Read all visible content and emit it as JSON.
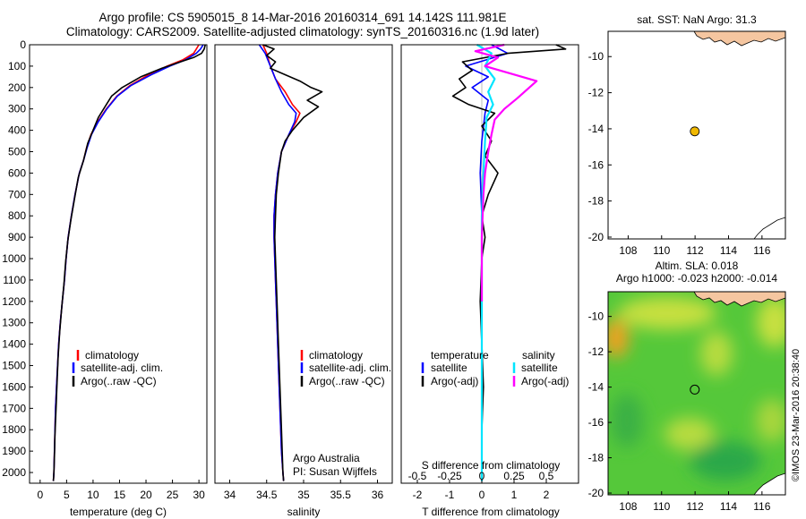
{
  "header": {
    "line1": "Argo profile: CS 5905015_8 14-Mar-2016 20160314_691 14.142S 111.981E",
    "line2": "Climatology: CARS2009. Satellite-adjusted climatology: synTS_20160316.nc (1.9d later)"
  },
  "credit": "©IMOS 23-Mar-2016 20:38:40",
  "colors": {
    "climatology": "#ff0000",
    "satellite": "#0000ff",
    "argo": "#000000",
    "salinity_satellite": "#00e5ff",
    "salinity_argo": "#ff00ff",
    "land": "#f5c6a0",
    "marker": "#f0b800"
  },
  "chart_data": [
    {
      "type": "line",
      "ylabel": "",
      "xlabel": "temperature (deg C)",
      "xlim": [
        -2,
        31.5
      ],
      "ylim": [
        2050,
        0
      ],
      "xticks": [
        0,
        5,
        10,
        15,
        20,
        25,
        30
      ],
      "yticks": [
        0,
        100,
        200,
        300,
        400,
        500,
        600,
        700,
        800,
        900,
        1000,
        1100,
        1200,
        1300,
        1400,
        1500,
        1600,
        1700,
        1800,
        1900,
        2000
      ],
      "legend": [
        "climatology",
        "satellite-adj. clim.",
        "Argo(..raw -QC)"
      ],
      "series": [
        {
          "name": "climatology",
          "color": "#ff0000",
          "x": [
            30.0,
            29.5,
            29.0,
            27.0,
            24.0,
            20.5,
            17.0,
            14.5,
            12.5,
            10.9,
            9.6,
            8.8,
            8.2,
            7.4,
            6.6,
            5.9,
            5.3,
            4.9,
            4.6,
            4.2,
            3.8,
            3.5,
            3.3,
            3.1,
            2.9,
            2.8,
            2.7,
            2.6,
            2.5
          ],
          "y": [
            0,
            20,
            40,
            70,
            100,
            140,
            190,
            240,
            300,
            360,
            420,
            480,
            540,
            600,
            700,
            800,
            900,
            1000,
            1100,
            1200,
            1300,
            1400,
            1500,
            1600,
            1700,
            1800,
            1900,
            2000,
            2040
          ]
        },
        {
          "name": "satellite-adj. clim.",
          "color": "#0000ff",
          "x": [
            30.8,
            30.3,
            29.5,
            27.5,
            24.5,
            21.0,
            17.2,
            14.6,
            12.6,
            11.0,
            9.7,
            8.9,
            8.2,
            7.4,
            6.6,
            5.9,
            5.3,
            4.9,
            4.6,
            4.2,
            3.8,
            3.5,
            3.3,
            3.1,
            2.9,
            2.8,
            2.7,
            2.6,
            2.5
          ],
          "y": [
            0,
            20,
            40,
            70,
            100,
            140,
            190,
            240,
            300,
            360,
            420,
            480,
            540,
            600,
            700,
            800,
            900,
            1000,
            1100,
            1200,
            1300,
            1400,
            1500,
            1600,
            1700,
            1800,
            1900,
            2000,
            2040
          ]
        },
        {
          "name": "Argo(..raw -QC)",
          "color": "#000000",
          "x": [
            31.2,
            31.0,
            30.5,
            29.0,
            26.5,
            23.0,
            19.0,
            15.5,
            13.5,
            12.5,
            11.0,
            10.0,
            9.0,
            8.2,
            7.2,
            6.5,
            5.8,
            5.2,
            4.8,
            4.5,
            4.1,
            3.7,
            3.4,
            3.2,
            3.0,
            2.8,
            2.7,
            2.6,
            2.5
          ],
          "y": [
            0,
            20,
            40,
            60,
            80,
            110,
            150,
            200,
            240,
            280,
            340,
            400,
            460,
            540,
            620,
            720,
            820,
            920,
            1020,
            1120,
            1220,
            1340,
            1460,
            1580,
            1700,
            1820,
            1920,
            2000,
            2040
          ]
        }
      ]
    },
    {
      "type": "line",
      "ylabel": "",
      "xlabel": "salinity",
      "xlim": [
        33.8,
        36.2
      ],
      "ylim": [
        2050,
        0
      ],
      "xticks": [
        34,
        34.5,
        35,
        35.5,
        36
      ],
      "xtick_labels": [
        "34",
        "34.5",
        "35",
        "35.5",
        "36"
      ],
      "legend": [
        "climatology",
        "satellite-adj. clim.",
        "Argo(..raw -QC)"
      ],
      "annotation": [
        "Argo Australia",
        "PI: Susan Wijffels"
      ],
      "series": [
        {
          "name": "climatology",
          "color": "#ff0000",
          "x": [
            34.45,
            34.5,
            34.55,
            34.62,
            34.75,
            34.85,
            34.95,
            34.9,
            34.8,
            34.7,
            34.65,
            34.62,
            34.6,
            34.6,
            34.61,
            34.62,
            34.64,
            34.66,
            34.68,
            34.7,
            34.72,
            34.73
          ],
          "y": [
            0,
            40,
            100,
            160,
            220,
            280,
            320,
            360,
            420,
            500,
            600,
            700,
            800,
            900,
            1000,
            1100,
            1300,
            1500,
            1700,
            1900,
            2000,
            2040
          ]
        },
        {
          "name": "satellite-adj. clim.",
          "color": "#0000ff",
          "x": [
            34.4,
            34.48,
            34.55,
            34.62,
            34.7,
            34.8,
            34.9,
            34.88,
            34.8,
            34.7,
            34.65,
            34.62,
            34.6,
            34.6,
            34.61,
            34.62,
            34.64,
            34.66,
            34.68,
            34.7,
            34.72,
            34.73
          ],
          "y": [
            0,
            40,
            100,
            160,
            220,
            280,
            320,
            360,
            420,
            500,
            600,
            700,
            800,
            900,
            1000,
            1100,
            1300,
            1500,
            1700,
            1900,
            2000,
            2040
          ]
        },
        {
          "name": "Argo(..raw -QC)",
          "color": "#000000",
          "x": [
            34.45,
            34.6,
            34.5,
            34.62,
            34.55,
            34.75,
            34.95,
            35.1,
            35.25,
            35.05,
            35.2,
            35.0,
            34.85,
            34.75,
            34.7,
            34.66,
            34.63,
            34.62,
            34.61,
            34.62,
            34.64,
            34.66,
            34.68,
            34.7,
            34.72,
            34.73
          ],
          "y": [
            0,
            20,
            50,
            80,
            110,
            140,
            170,
            200,
            220,
            260,
            290,
            340,
            400,
            450,
            500,
            600,
            700,
            800,
            900,
            1000,
            1200,
            1400,
            1600,
            1800,
            2000,
            2040
          ]
        }
      ]
    },
    {
      "type": "line",
      "ylabel": "",
      "xlabel": "T difference from climatology",
      "xlabel_top": "S difference from climatology",
      "xlim": [
        -2.5,
        3.0
      ],
      "ylim": [
        2050,
        0
      ],
      "xticks": [
        -2,
        -1,
        0,
        1,
        2
      ],
      "top_ticks": [
        -0.5,
        -0.25,
        0,
        0.25,
        0.5
      ],
      "top_tick_labels": [
        "-0.5",
        "-0.25",
        "0",
        "0.25",
        "0.5"
      ],
      "legend_left_title": "temperature",
      "legend_right_title": "salinity",
      "legend": [
        "satellite",
        "Argo(-adj)",
        "satellite",
        "Argo(-adj)"
      ],
      "series": [
        {
          "name": "temperature satellite",
          "color": "#0000ff",
          "x": [
            0.3,
            0.8,
            -0.5,
            0.2,
            -0.3,
            0.2,
            0.1,
            0.0,
            -0.05,
            0.0,
            0.0,
            0.0,
            0.0,
            0.0
          ],
          "y": [
            0,
            40,
            100,
            150,
            200,
            260,
            320,
            450,
            600,
            800,
            1000,
            1400,
            1800,
            2040
          ]
        },
        {
          "name": "temperature Argo(-adj)",
          "color": "#000000",
          "x": [
            2.3,
            2.6,
            0.8,
            -0.6,
            -0.3,
            -0.7,
            -0.5,
            -0.9,
            -0.4,
            0.4,
            0.0,
            0.3,
            0.1,
            0.5,
            0.2,
            0.0,
            0.1,
            0.0,
            -0.05,
            0.0,
            0.05,
            0.0,
            0.0
          ],
          "y": [
            0,
            20,
            40,
            80,
            120,
            160,
            200,
            240,
            280,
            320,
            380,
            450,
            520,
            600,
            700,
            800,
            900,
            1000,
            1200,
            1400,
            1600,
            1800,
            2040
          ]
        },
        {
          "name": "salinity satellite",
          "color": "#00e5ff",
          "x": [
            -0.15,
            0.3,
            0.1,
            0.4,
            0.2,
            0.35,
            0.15,
            0.1,
            0.05,
            0.0,
            0.0,
            0.0,
            0.0
          ],
          "y": [
            0,
            40,
            100,
            160,
            220,
            280,
            340,
            450,
            600,
            800,
            1100,
            1500,
            2040
          ]
        },
        {
          "name": "salinity Argo(-adj)",
          "color": "#ff00ff",
          "x": [
            0.7,
            -0.2,
            0.5,
            0.1,
            1.7,
            1.1,
            0.7,
            0.4,
            0.3,
            0.2,
            0.1,
            0.05,
            0.0,
            0.0
          ],
          "y": [
            0,
            30,
            60,
            100,
            170,
            250,
            300,
            350,
            420,
            500,
            600,
            700,
            900,
            1200
          ]
        }
      ]
    }
  ],
  "map_sst": {
    "title": "sat. SST: NaN Argo: 31.3",
    "xticks": [
      "108",
      "110",
      "112",
      "114",
      "116"
    ],
    "yticks": [
      "-10",
      "-12",
      "-14",
      "-16",
      "-18",
      "-20"
    ],
    "xlim": [
      106.8,
      117.4
    ],
    "ylim": [
      -20.1,
      -8.6
    ],
    "marker": {
      "lon": 111.981,
      "lat": -14.142
    }
  },
  "map_sla": {
    "title": "Altim. SLA: 0.018",
    "subtitle": "Argo h1000: -0.023 h2000: -0.014",
    "xticks": [
      "108",
      "110",
      "112",
      "114",
      "116"
    ],
    "yticks": [
      "-10",
      "-12",
      "-14",
      "-16",
      "-18",
      "-20"
    ],
    "xlim": [
      106.8,
      117.4
    ],
    "ylim": [
      -20.1,
      -8.6
    ],
    "marker": {
      "lon": 111.981,
      "lat": -14.142
    }
  }
}
